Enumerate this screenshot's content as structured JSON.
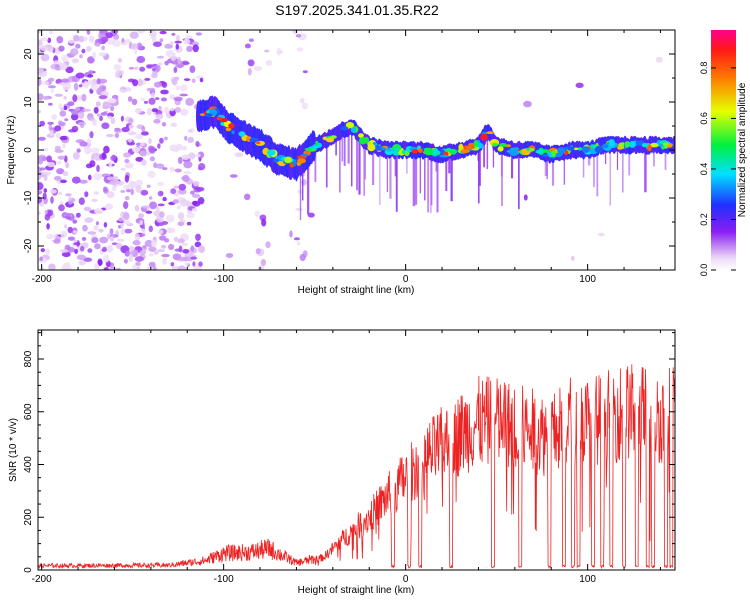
{
  "title": "S197.2025.341.01.35.R22",
  "chart_data": [
    {
      "type": "heatmap",
      "xlabel": "Height of straight line (km)",
      "ylabel": "Frequency (Hz)",
      "xlim": [
        -202,
        148
      ],
      "ylim": [
        -25,
        25
      ],
      "xticks": [
        -200,
        -100,
        0,
        100
      ],
      "yticks": [
        20,
        10,
        0,
        -10,
        -20
      ],
      "colorbar": {
        "label": "Normalized spectral amplitude",
        "range": [
          0,
          0.95
        ],
        "ticks": [
          0.0,
          0.2,
          0.4,
          0.6,
          0.8
        ]
      },
      "ridge": {
        "x": [
          -112,
          -105,
          -98,
          -90,
          -80,
          -70,
          -60,
          -50,
          -40,
          -30,
          -20,
          -10,
          0,
          10,
          20,
          30,
          40,
          45,
          50,
          60,
          70,
          80,
          90,
          100,
          110,
          120,
          130,
          140,
          148
        ],
        "y": [
          7,
          8,
          5,
          3,
          1,
          -2,
          -3,
          1,
          3,
          5,
          1,
          0,
          0,
          0,
          -1,
          0,
          1,
          4,
          1,
          0,
          0,
          -1,
          0,
          0,
          1,
          1,
          1,
          1,
          1
        ]
      }
    },
    {
      "type": "line",
      "xlabel": "Height of straight line (km)",
      "ylabel": "SNR (10 * v/v)",
      "xlim": [
        -202,
        148
      ],
      "ylim": [
        0,
        910
      ],
      "xticks": [
        -200,
        -100,
        0,
        100
      ],
      "yticks": [
        0,
        200,
        400,
        600,
        800
      ],
      "color": "#ee2222",
      "envelope": {
        "x": [
          -202,
          -130,
          -110,
          -100,
          -85,
          -75,
          -60,
          -45,
          -35,
          -20,
          -10,
          0,
          10,
          20,
          30,
          40,
          50,
          60,
          70,
          80,
          90,
          100,
          110,
          120,
          130,
          140,
          148
        ],
        "y": [
          18,
          20,
          40,
          70,
          75,
          90,
          30,
          55,
          130,
          230,
          320,
          400,
          480,
          540,
          590,
          640,
          640,
          620,
          600,
          580,
          650,
          640,
          660,
          690,
          680,
          660,
          700
        ]
      },
      "dropouts_x": [
        -7,
        2,
        8,
        25,
        48,
        63,
        79,
        87,
        92,
        95,
        103,
        108,
        113,
        120,
        127,
        133,
        136,
        143,
        146
      ]
    }
  ]
}
